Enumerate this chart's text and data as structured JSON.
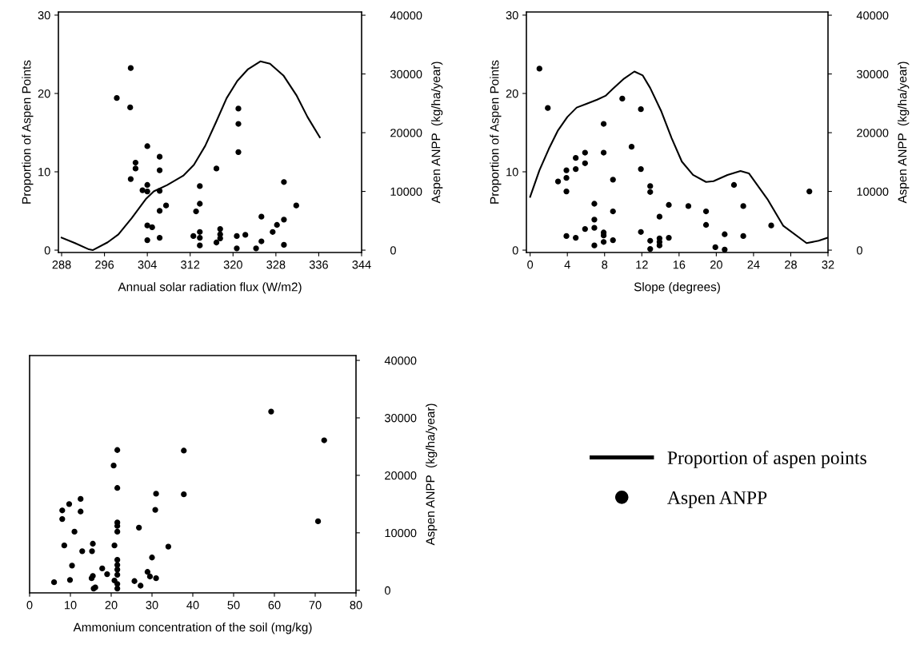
{
  "chart_data": [
    {
      "type": "scatter",
      "xlabel": "Annual solar radiation flux (W/m2)",
      "ylabel": "Proportion of Aspen Points",
      "y2label": "Aspen ANPP  (kg/ha/year)",
      "xlim": [
        287.4,
        344
      ],
      "xticks": [
        288,
        296,
        304,
        312,
        320,
        328,
        336,
        344
      ],
      "ylim": [
        -0.3,
        30.4
      ],
      "yticks": [
        0,
        10,
        20,
        30
      ],
      "y2lim": [
        -400,
        40550
      ],
      "y2ticks": [
        0,
        10000,
        20000,
        30000,
        40000
      ],
      "grid": false,
      "legend": "bottom right",
      "series": [
        {
          "name": "Proportion of aspen points",
          "type": "line",
          "color": "#000000",
          "marker": "none",
          "line_style": "solid",
          "x": [
            288,
            290.5,
            293.1,
            293.8,
            296.6,
            298.6,
            301.1,
            303.7,
            305.2,
            307.7,
            310.7,
            312.7,
            314.8,
            316.8,
            318.8,
            320.8,
            322.8,
            325.1,
            326.9,
            329.4,
            331.9,
            333.9,
            336.2
          ],
          "values": [
            1.6,
            0.9,
            0.1,
            0,
            1.0,
            2.0,
            4.1,
            6.5,
            7.5,
            8.3,
            9.5,
            10.9,
            13.3,
            16.3,
            19.4,
            21.6,
            23.1,
            24.1,
            23.8,
            22.3,
            19.7,
            17.0,
            14.4
          ]
        },
        {
          "name": "Aspen ANPP",
          "axis": "y2",
          "color": "#000000",
          "marker": "circle",
          "x": [
            298.3,
            300.9,
            300.8,
            300.9,
            301.8,
            301.8,
            303.1,
            304.0,
            304.0,
            304.0,
            304.0,
            304.9,
            304.0,
            306.3,
            306.3,
            306.3,
            306.3,
            306.3,
            307.5,
            312.6,
            313.8,
            313.8,
            313.1,
            313.8,
            313.8,
            313.8,
            316.9,
            316.9,
            317.6,
            317.6,
            317.6,
            321.0,
            321.0,
            321.0,
            320.7,
            320.7,
            322.3,
            324.3,
            325.3,
            325.3,
            327.4,
            328.2,
            329.5,
            329.5,
            329.5,
            331.8
          ],
          "values": [
            25900,
            31000,
            24300,
            12100,
            14900,
            13900,
            10200,
            17700,
            11100,
            10000,
            4200,
            3900,
            1700,
            15900,
            13600,
            10100,
            6700,
            2100,
            7600,
            2400,
            10900,
            7900,
            6600,
            3100,
            2100,
            800,
            13900,
            1300,
            3600,
            2700,
            2000,
            24100,
            21500,
            16700,
            2400,
            300,
            2600,
            300,
            5700,
            1500,
            3100,
            4300,
            11600,
            5200,
            900,
            7600
          ]
        }
      ]
    },
    {
      "type": "scatter",
      "xlabel": "Slope (degrees)",
      "ylabel": "Proportion of Aspen Points",
      "y2label": "Aspen ANPP  (kg/ha/year)",
      "xlim": [
        -0.4,
        32
      ],
      "xticks": [
        0,
        4,
        8,
        12,
        16,
        20,
        24,
        28,
        32
      ],
      "ylim": [
        -0.3,
        30.4
      ],
      "yticks": [
        0,
        10,
        20,
        30
      ],
      "y2lim": [
        -400,
        40550
      ],
      "y2ticks": [
        0,
        10000,
        20000,
        30000,
        40000
      ],
      "grid": false,
      "series": [
        {
          "type": "line",
          "color": "#000000",
          "marker": "none",
          "line_style": "solid",
          "x": [
            0,
            1.0,
            2.0,
            3.0,
            4.0,
            5.0,
            6.1,
            7.2,
            8.1,
            8.9,
            10.1,
            11.2,
            12.1,
            12.9,
            14.1,
            15.2,
            16.3,
            17.5,
            18.9,
            19.7,
            21.2,
            22.6,
            23.5,
            25.5,
            27.2,
            29.7,
            31,
            32
          ],
          "values": [
            6.8,
            10.2,
            12.9,
            15.3,
            17.0,
            18.2,
            18.7,
            19.2,
            19.7,
            20.6,
            21.9,
            22.8,
            22.3,
            20.7,
            17.7,
            14.3,
            11.3,
            9.6,
            8.7,
            8.8,
            9.6,
            10.1,
            9.8,
            6.5,
            3.1,
            0.9,
            1.2,
            1.6
          ]
        },
        {
          "axis": "y2",
          "color": "#000000",
          "marker": "circle",
          "x": [
            1.0,
            1.9,
            3.0,
            3.9,
            3.9,
            3.9,
            3.9,
            4.9,
            4.9,
            4.9,
            5.9,
            5.9,
            5.9,
            6.9,
            6.9,
            6.9,
            6.9,
            7.9,
            7.9,
            7.9,
            7.9,
            7.9,
            8.9,
            8.9,
            8.9,
            9.9,
            10.9,
            11.9,
            11.9,
            11.9,
            12.9,
            12.9,
            12.9,
            12.9,
            13.9,
            13.9,
            13.9,
            13.9,
            14.9,
            14.9,
            17.0,
            18.9,
            18.9,
            19.9,
            20.9,
            20.9,
            21.9,
            22.9,
            22.9,
            25.9,
            30
          ],
          "values": [
            30900,
            24200,
            11700,
            13600,
            12300,
            10000,
            2400,
            15700,
            13800,
            2100,
            16600,
            14800,
            3600,
            7900,
            5200,
            3800,
            800,
            21500,
            16600,
            3000,
            2500,
            1400,
            12000,
            6600,
            1700,
            25800,
            17600,
            24000,
            13800,
            3100,
            10900,
            9900,
            1600,
            200,
            5700,
            2000,
            1400,
            800,
            7700,
            2100,
            7500,
            6600,
            4300,
            500,
            2700,
            100,
            11100,
            7500,
            2400,
            4200,
            10000
          ]
        }
      ]
    },
    {
      "type": "scatter",
      "xlabel": "Ammonium concentration of the soil (mg/kg)",
      "y2label": "Aspen ANPP  (kg/ha/year)",
      "xlim": [
        0,
        80
      ],
      "xticks": [
        0,
        10,
        20,
        30,
        40,
        50,
        60,
        70,
        80
      ],
      "y2lim": [
        -450,
        40840
      ],
      "y2ticks": [
        0,
        10000,
        20000,
        30000,
        40000
      ],
      "grid": false,
      "series": [
        {
          "axis": "y2",
          "color": "#000000",
          "marker": "circle",
          "x": [
            6.0,
            8.0,
            8.0,
            8.5,
            9.7,
            9.9,
            10.4,
            11.0,
            12.5,
            12.5,
            12.9,
            15.2,
            15.3,
            15.5,
            15.5,
            15.7,
            16.1,
            17.8,
            19.0,
            20.6,
            20.8,
            20.8,
            21.5,
            21.5,
            21.5,
            21.5,
            21.5,
            21.5,
            21.5,
            21.5,
            21.5,
            21.5,
            21.5,
            25.7,
            26.8,
            27.2,
            28.9,
            29.5,
            30.0,
            31.0,
            31.0,
            30.8,
            34.0,
            37.8,
            37.8,
            59.2,
            70.7,
            72.2
          ],
          "values": [
            1400,
            13900,
            12400,
            7800,
            15000,
            1800,
            4300,
            10200,
            15900,
            13700,
            6800,
            2100,
            6800,
            8100,
            2500,
            300,
            500,
            3800,
            2800,
            21700,
            7800,
            1700,
            24400,
            17800,
            11800,
            11200,
            10200,
            5300,
            4400,
            3600,
            2700,
            1100,
            300,
            1600,
            10900,
            800,
            3200,
            2400,
            5700,
            2100,
            16800,
            14000,
            7600,
            24300,
            16700,
            31100,
            12000,
            26100
          ]
        }
      ]
    }
  ]
}
